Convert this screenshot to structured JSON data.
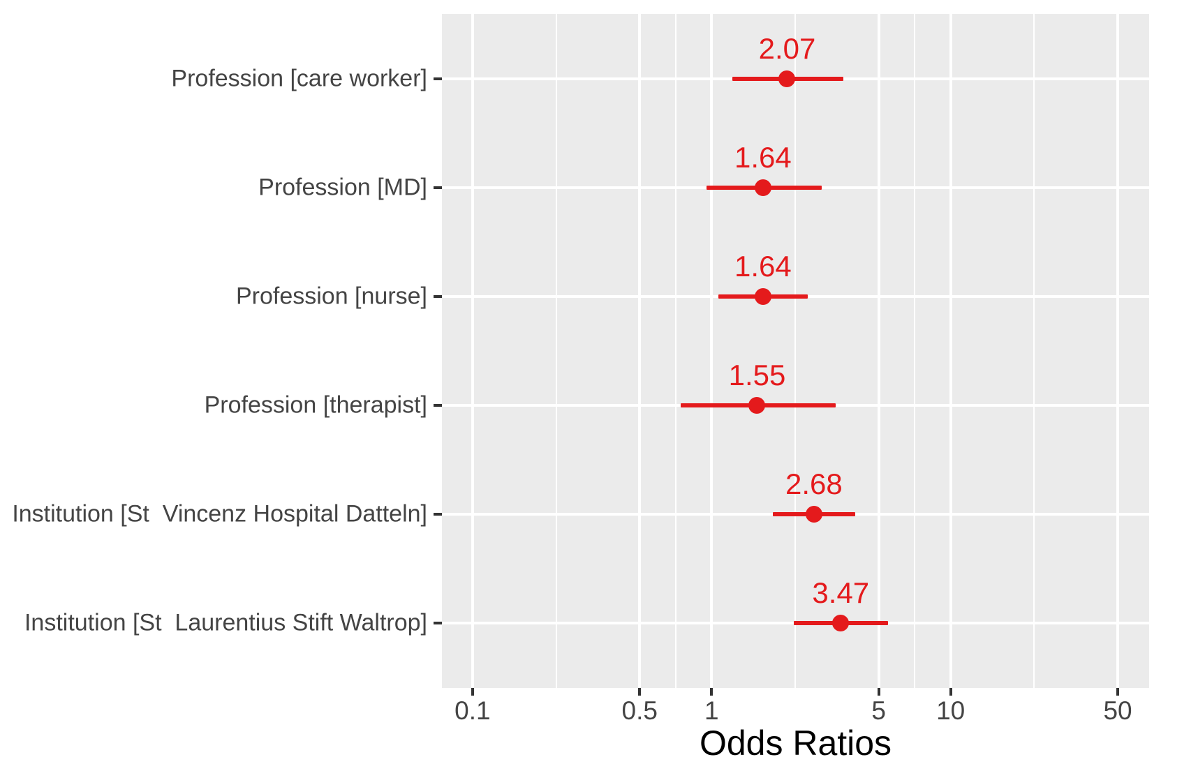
{
  "chart_data": {
    "type": "forest",
    "title": "",
    "xlabel": "Odds Ratios",
    "x_scale": "log10",
    "x_ticks": [
      0.1,
      0.5,
      1,
      5,
      10,
      50
    ],
    "x_tick_labels": [
      "0.1",
      "0.5",
      "1",
      "5",
      "10",
      "50"
    ],
    "x_minor_gridlines": [
      0.2236,
      0.7071,
      2.2361,
      7.0711,
      22.3607
    ],
    "x_range": [
      0.074,
      67.6
    ],
    "grid": true,
    "legend_position": "none",
    "rows": [
      {
        "label": "Profession [care worker]",
        "or": 2.07,
        "or_label": "2.07",
        "ci_low": 1.22,
        "ci_high": 3.56
      },
      {
        "label": "Profession [MD]",
        "or": 1.64,
        "or_label": "1.64",
        "ci_low": 0.95,
        "ci_high": 2.88
      },
      {
        "label": "Profession [nurse]",
        "or": 1.64,
        "or_label": "1.64",
        "ci_low": 1.07,
        "ci_high": 2.52
      },
      {
        "label": "Profession [therapist]",
        "or": 1.55,
        "or_label": "1.55",
        "ci_low": 0.74,
        "ci_high": 3.3
      },
      {
        "label": "Institution [St  Vincenz Hospital Datteln]",
        "or": 2.68,
        "or_label": "2.68",
        "ci_low": 1.8,
        "ci_high": 3.99
      },
      {
        "label": "Institution [St  Laurentius Stift Waltrop]",
        "or": 3.47,
        "or_label": "3.47",
        "ci_low": 2.2,
        "ci_high": 5.46
      }
    ],
    "colors": {
      "estimate": "#E41A1C",
      "panel_background": "#EBEBEB",
      "gridline": "#FFFFFF",
      "axis_text": "#444444",
      "tick_mark": "#333333",
      "axis_title": "#000000",
      "page_background": "#FFFFFF"
    }
  }
}
